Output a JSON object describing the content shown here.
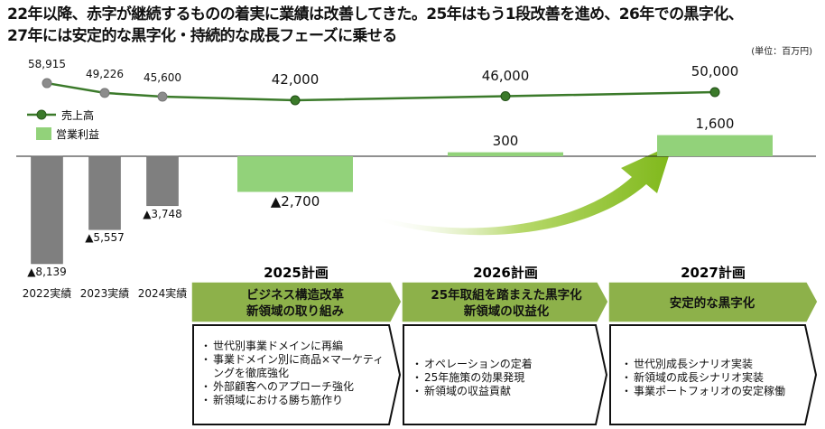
{
  "title_line1": "22年以降、赤字が継続するものの着実に業績は改善してきた。25年はもう1段改善を進め、26年での黒字化、",
  "title_line2": "27年には安定的な黒字化・持続的な成長フェーズに乗せる",
  "unit": "(単位：百万円)",
  "colors": {
    "line": "#3b7a2a",
    "actual_marker": "#8c8c8c",
    "actual_bar": "#7f7f7f",
    "plan_bar": "#92d27a",
    "header": "#8db14a",
    "arrow": "#8fc31f"
  },
  "chart_data": {
    "type": "bar+line",
    "categories": [
      "2022実績",
      "2023実績",
      "2024実績",
      "2025計画",
      "2026計画",
      "2027計画"
    ],
    "series": [
      {
        "name": "売上高",
        "type": "line",
        "values": [
          58915,
          49226,
          45600,
          42000,
          46000,
          50000
        ],
        "labels": [
          "58,915",
          "49,226",
          "45,600",
          "42,000",
          "46,000",
          "50,000"
        ]
      },
      {
        "name": "営業利益",
        "type": "bar",
        "values": [
          -8139,
          -5557,
          -3748,
          -2700,
          300,
          1600
        ],
        "labels": [
          "▲8,139",
          "▲5,557",
          "▲3,748",
          "▲2,700",
          "300",
          "1,600"
        ]
      }
    ],
    "legend": "left"
  },
  "plans": [
    {
      "year": "2025計画",
      "header": [
        "ビジネス構造改革",
        "新領域の取り組み"
      ],
      "items": [
        "世代別事業ドメインに再編",
        "事業ドメイン別に商品×マーケティングを徹底強化",
        "外部顧客へのアプローチ強化",
        "新領域における勝ち筋作り"
      ]
    },
    {
      "year": "2026計画",
      "header": [
        "25年取組を踏まえた黒字化",
        "新領域の収益化"
      ],
      "items": [
        "オペレーションの定着",
        "25年施策の効果発現",
        "新領域の収益貢献"
      ]
    },
    {
      "year": "2027計画",
      "header": [
        "安定的な黒字化"
      ],
      "items": [
        "世代別成長シナリオ実装",
        "新領域の成長シナリオ実装",
        "事業ポートフォリオの安定稼働"
      ]
    }
  ]
}
